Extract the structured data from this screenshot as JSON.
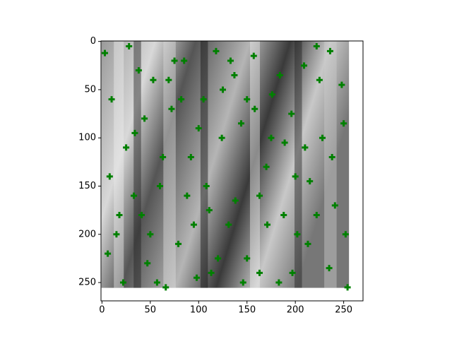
{
  "chart_data": {
    "type": "scatter",
    "xlim": [
      -1,
      270
    ],
    "ylim": [
      269,
      -0.5
    ],
    "xticks": [
      0,
      50,
      100,
      150,
      200,
      250
    ],
    "yticks": [
      0,
      50,
      100,
      150,
      200,
      250
    ],
    "marker": "plus",
    "series": [
      {
        "color": "#008000",
        "x": [
          3,
          8,
          15,
          22,
          28,
          34,
          41,
          47,
          53,
          60,
          66,
          72,
          79,
          85,
          92,
          98,
          105,
          111,
          118,
          124,
          131,
          137,
          144,
          150,
          157,
          163,
          170,
          176,
          183,
          189,
          196,
          202,
          209,
          215,
          222,
          228,
          235,
          241,
          248,
          254,
          10,
          25,
          38,
          50,
          63,
          75,
          88,
          100,
          113,
          125,
          138,
          150,
          163,
          175,
          188,
          200,
          213,
          225,
          238,
          250,
          6,
          18,
          33,
          44,
          57,
          69,
          82,
          95,
          108,
          120,
          133,
          146,
          158,
          171,
          184,
          197,
          210,
          222,
          236,
          252
        ],
        "y": [
          12,
          140,
          200,
          250,
          5,
          95,
          180,
          230,
          40,
          150,
          255,
          70,
          210,
          20,
          120,
          245,
          60,
          175,
          10,
          100,
          190,
          35,
          85,
          225,
          15,
          160,
          130,
          55,
          250,
          105,
          75,
          200,
          25,
          145,
          5,
          100,
          235,
          170,
          45,
          255,
          60,
          110,
          30,
          200,
          120,
          20,
          160,
          90,
          240,
          50,
          165,
          60,
          240,
          100,
          180,
          140,
          210,
          40,
          120,
          85,
          220,
          180,
          160,
          80,
          250,
          40,
          60,
          190,
          150,
          225,
          20,
          250,
          70,
          190,
          35,
          240,
          110,
          180,
          10,
          200
        ]
      }
    ]
  }
}
